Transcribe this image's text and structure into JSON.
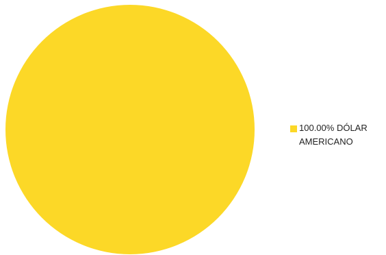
{
  "chart_data": {
    "type": "pie",
    "slices": [
      {
        "label_line1": "DÓLAR",
        "label_line2": "AMERICANO",
        "value": 100.0,
        "percent_label": "100.00%",
        "color": "#FCD827"
      }
    ],
    "legend_position": "right"
  }
}
